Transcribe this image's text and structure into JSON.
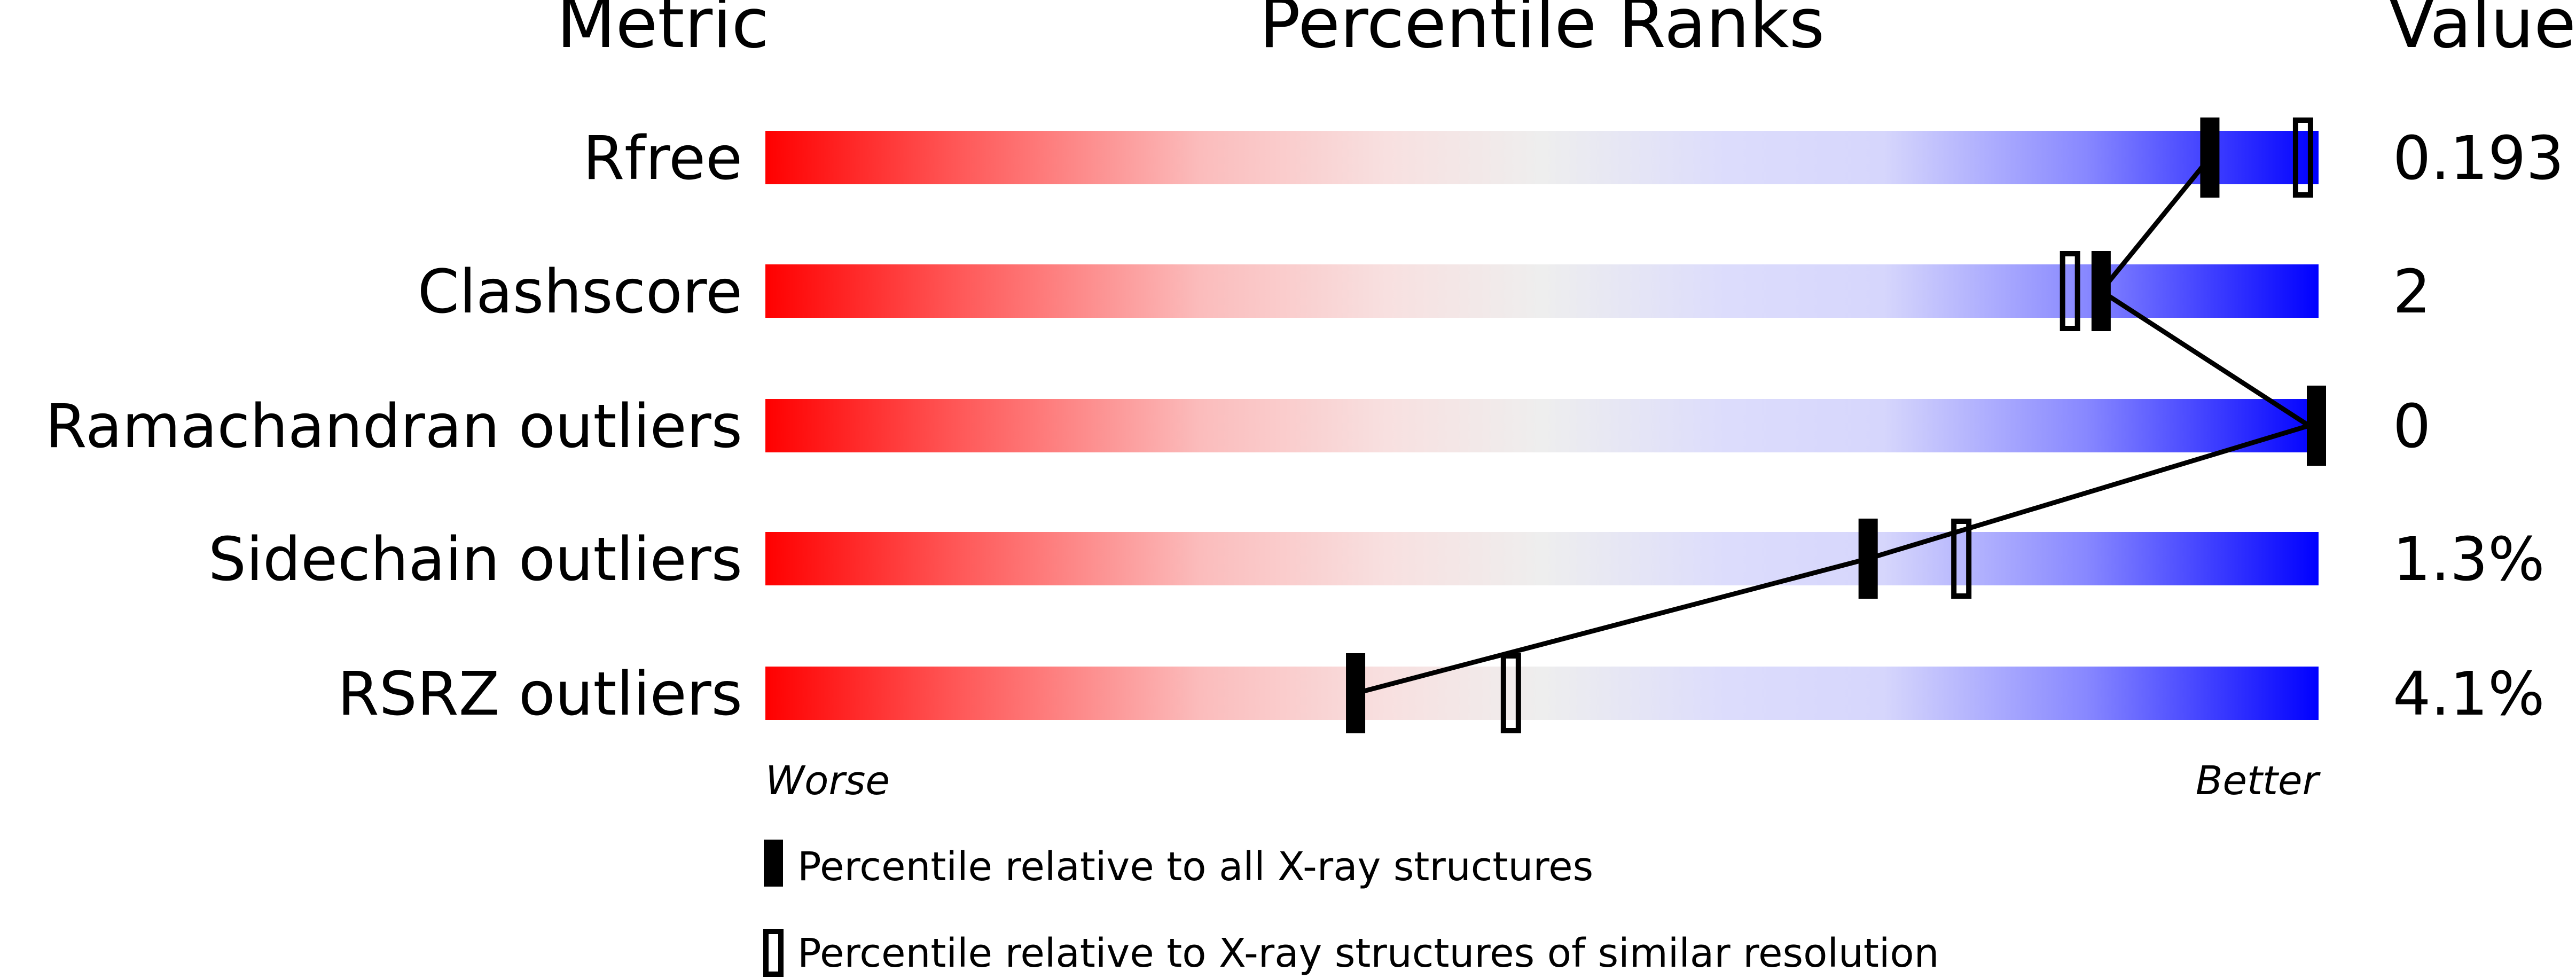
{
  "chart_data": {
    "type": "percentile-rank",
    "headers": {
      "metric": "Metric",
      "ranks": "Percentile Ranks",
      "value": "Value"
    },
    "xlim": [
      0,
      100
    ],
    "axis_labels": {
      "left": "Worse",
      "right": "Better"
    },
    "rows": [
      {
        "metric": "Rfree",
        "value": "0.193",
        "percentile_all": 93,
        "percentile_similar": 99
      },
      {
        "metric": "Clashscore",
        "value": "2",
        "percentile_all": 86,
        "percentile_similar": 84
      },
      {
        "metric": "Ramachandran outliers",
        "value": "0",
        "percentile_all": 100,
        "percentile_similar": null
      },
      {
        "metric": "Sidechain outliers",
        "value": "1.3%",
        "percentile_all": 71,
        "percentile_similar": 77
      },
      {
        "metric": "RSRZ outliers",
        "value": "4.1%",
        "percentile_all": 38,
        "percentile_similar": 48
      }
    ],
    "legend": {
      "all": "Percentile relative to all X-ray structures",
      "similar": "Percentile relative to X-ray structures of similar resolution"
    },
    "colors": {
      "worse": "#ff0000",
      "middle": "#eeeeee",
      "better": "#0000ff",
      "marker": "#000000"
    }
  }
}
